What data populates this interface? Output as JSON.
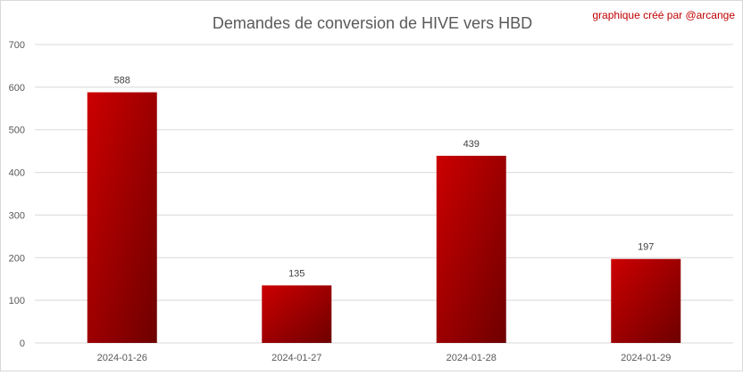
{
  "credit": "graphique créé par @arcange",
  "colors": {
    "bar_light": "#cc0000",
    "bar_dark": "#6e0000",
    "credit": "#c00000",
    "grid": "#d9d9d9",
    "axis_text": "#595959",
    "title_text": "#595959"
  },
  "chart_data": {
    "type": "bar",
    "title": "Demandes de conversion de HIVE vers HBD",
    "xlabel": "",
    "ylabel": "",
    "categories": [
      "2024-01-26",
      "2024-01-27",
      "2024-01-28",
      "2024-01-29"
    ],
    "values": [
      588,
      135,
      439,
      197
    ],
    "data_labels": [
      "588",
      "135",
      "439",
      "197"
    ],
    "ylim": [
      0,
      700
    ],
    "yticks": [
      0,
      100,
      200,
      300,
      400,
      500,
      600,
      700
    ],
    "grid": true,
    "legend": false
  }
}
